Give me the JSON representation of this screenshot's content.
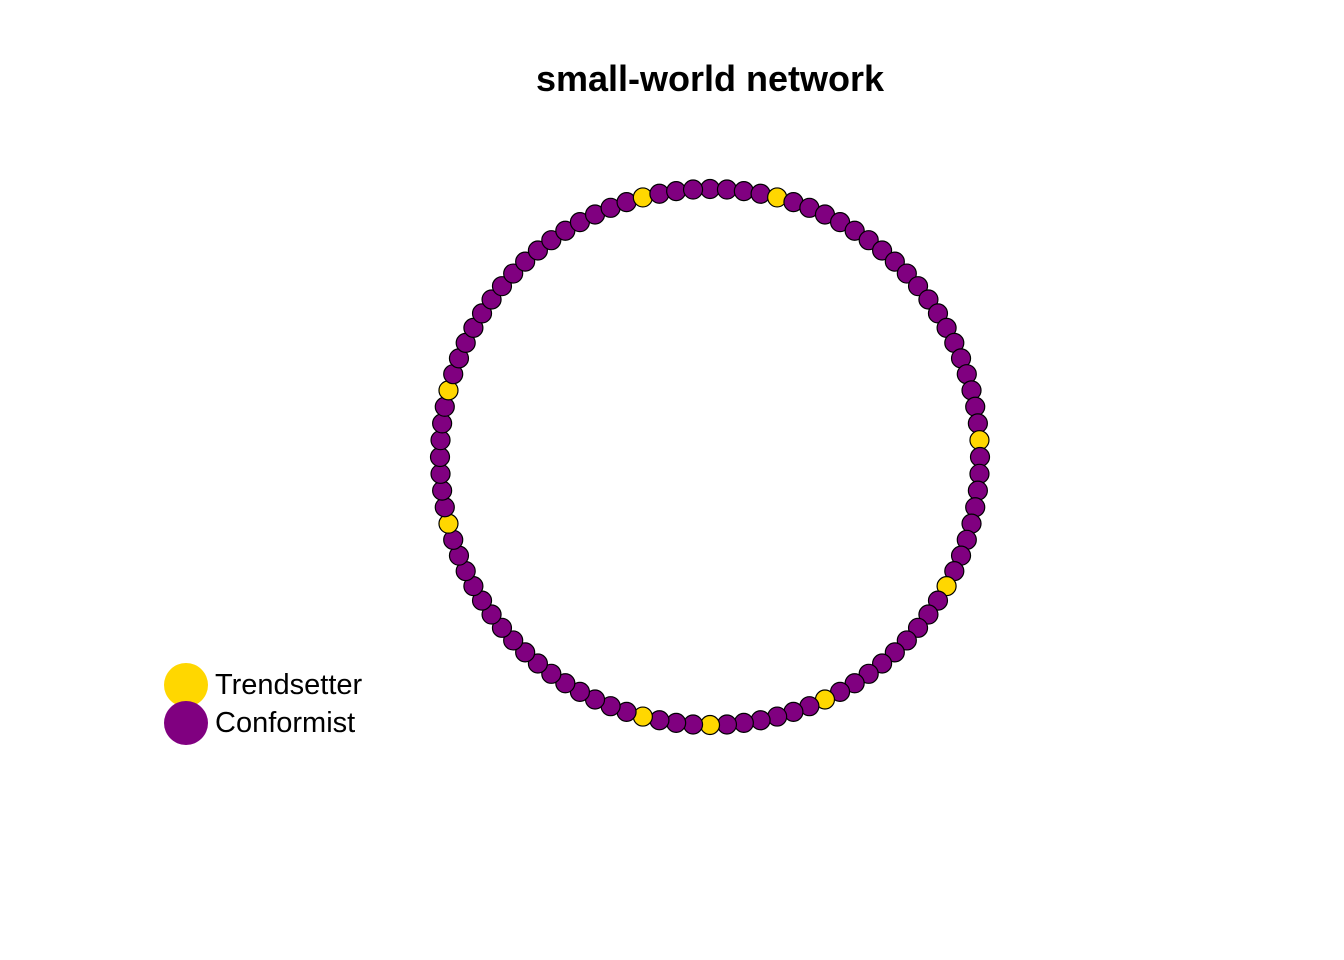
{
  "title": "small-world network",
  "colors": {
    "trendsetter": "#FFD700",
    "conformist": "#800080",
    "node_border": "#000000"
  },
  "legend": [
    {
      "label": "Trendsetter",
      "role": "trendsetter"
    },
    {
      "label": "Conformist",
      "role": "conformist"
    }
  ],
  "network": {
    "type": "ring",
    "node_count": 100,
    "trendsetter_positions": [
      4,
      24,
      33,
      43,
      50,
      54,
      71,
      79,
      96
    ]
  }
}
